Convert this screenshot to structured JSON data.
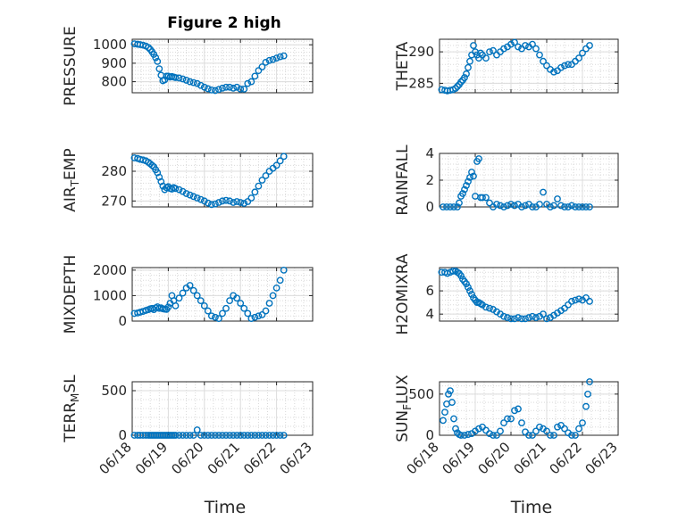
{
  "figure": {
    "title": "Figure 2 high"
  },
  "chart_data": [
    {
      "type": "scatter",
      "title": "Figure 2 high",
      "ylabel": "PRESSURE",
      "xlabel": "",
      "xlim": [
        "06/18",
        "06/23"
      ],
      "ylim": [
        740,
        1030
      ],
      "yticks": [
        "800",
        "900",
        "1000"
      ],
      "x_ticklabels": [
        "06/18",
        "06/19",
        "06/20",
        "06/21",
        "06/22",
        "06/23"
      ],
      "grid": true,
      "x": [
        0.06,
        0.15,
        0.22,
        0.3,
        0.38,
        0.45,
        0.5,
        0.55,
        0.6,
        0.65,
        0.7,
        0.75,
        0.8,
        0.85,
        0.9,
        0.95,
        1.0,
        1.05,
        1.1,
        1.15,
        1.2,
        1.3,
        1.4,
        1.5,
        1.6,
        1.7,
        1.8,
        1.9,
        2.0,
        2.1,
        2.2,
        2.3,
        2.4,
        2.5,
        2.6,
        2.7,
        2.8,
        2.9,
        3.0,
        3.1,
        3.2,
        3.3,
        3.4,
        3.5,
        3.6,
        3.7,
        3.8,
        3.9,
        4.0,
        4.1,
        4.2
      ],
      "y": [
        1005,
        1003,
        1001,
        998,
        993,
        985,
        975,
        962,
        948,
        930,
        910,
        870,
        835,
        805,
        810,
        830,
        830,
        825,
        828,
        825,
        822,
        820,
        815,
        808,
        800,
        795,
        790,
        780,
        770,
        762,
        755,
        752,
        758,
        765,
        770,
        770,
        765,
        770,
        760,
        760,
        790,
        800,
        830,
        860,
        880,
        905,
        915,
        920,
        928,
        935,
        940
      ]
    },
    {
      "type": "scatter",
      "ylabel": "THETA",
      "xlabel": "",
      "xlim": [
        "06/18",
        "06/23"
      ],
      "ylim": [
        283.5,
        292
      ],
      "yticks": [
        "285",
        "290"
      ],
      "x_ticklabels": [
        "06/18",
        "06/19",
        "06/20",
        "06/21",
        "06/22",
        "06/23"
      ],
      "grid": true,
      "x": [
        0.06,
        0.15,
        0.22,
        0.3,
        0.38,
        0.45,
        0.5,
        0.55,
        0.6,
        0.65,
        0.7,
        0.75,
        0.8,
        0.85,
        0.9,
        0.95,
        1.0,
        1.05,
        1.1,
        1.15,
        1.2,
        1.3,
        1.4,
        1.5,
        1.6,
        1.7,
        1.8,
        1.9,
        2.0,
        2.1,
        2.2,
        2.3,
        2.4,
        2.5,
        2.6,
        2.7,
        2.8,
        2.9,
        3.0,
        3.1,
        3.2,
        3.3,
        3.4,
        3.5,
        3.6,
        3.7,
        3.8,
        3.9,
        4.0,
        4.1,
        4.2
      ],
      "y": [
        284,
        283.9,
        283.8,
        283.9,
        284,
        284.2,
        284.5,
        284.8,
        285.2,
        285.5,
        285.9,
        286.5,
        287.5,
        288.5,
        289.5,
        291.0,
        290,
        289.5,
        289,
        289.8,
        289.5,
        289,
        290,
        290.2,
        289.5,
        290,
        290.5,
        290.8,
        291.2,
        291.5,
        290.8,
        290.5,
        291,
        290.8,
        291.2,
        290.5,
        289.5,
        288.5,
        287.8,
        287.2,
        286.8,
        287,
        287.5,
        287.8,
        288,
        288,
        288.5,
        289,
        289.8,
        290.5,
        291
      ]
    },
    {
      "type": "scatter",
      "ylabel": "AIR_TEMP",
      "xlabel": "",
      "xlim": [
        "06/18",
        "06/23"
      ],
      "ylim": [
        268,
        286
      ],
      "yticks": [
        "270",
        "280"
      ],
      "x_ticklabels": [
        "06/18",
        "06/19",
        "06/20",
        "06/21",
        "06/22",
        "06/23"
      ],
      "grid": true,
      "x": [
        0.06,
        0.15,
        0.22,
        0.3,
        0.38,
        0.45,
        0.5,
        0.55,
        0.6,
        0.65,
        0.7,
        0.75,
        0.8,
        0.85,
        0.9,
        0.95,
        1.0,
        1.05,
        1.1,
        1.15,
        1.2,
        1.3,
        1.4,
        1.5,
        1.6,
        1.7,
        1.8,
        1.9,
        2.0,
        2.1,
        2.2,
        2.3,
        2.4,
        2.5,
        2.6,
        2.7,
        2.8,
        2.9,
        3.0,
        3.1,
        3.2,
        3.3,
        3.4,
        3.5,
        3.6,
        3.7,
        3.8,
        3.9,
        4.0,
        4.1,
        4.2
      ],
      "y": [
        284.5,
        284.3,
        284,
        283.8,
        283.5,
        283,
        282.5,
        282,
        281.5,
        280.5,
        279.5,
        278,
        276.5,
        275,
        273.8,
        274.5,
        274.8,
        274.2,
        274,
        274.5,
        274.2,
        273.8,
        273.2,
        272.5,
        272,
        271.5,
        271,
        270.5,
        270,
        269.3,
        268.8,
        269,
        269.5,
        270,
        270.2,
        270,
        269.5,
        269.8,
        269.5,
        269.2,
        269.8,
        271,
        273,
        275,
        277,
        278.5,
        280,
        281,
        282,
        283.5,
        285
      ]
    },
    {
      "type": "scatter",
      "ylabel": "RAINFALL",
      "xlabel": "",
      "xlim": [
        "06/18",
        "06/23"
      ],
      "ylim": [
        0,
        4
      ],
      "yticks": [
        "0",
        "2",
        "4"
      ],
      "x_ticklabels": [
        "06/18",
        "06/19",
        "06/20",
        "06/21",
        "06/22",
        "06/23"
      ],
      "grid": true,
      "x": [
        0.1,
        0.2,
        0.3,
        0.4,
        0.5,
        0.55,
        0.6,
        0.65,
        0.7,
        0.75,
        0.8,
        0.85,
        0.9,
        0.95,
        1.0,
        1.05,
        1.1,
        1.15,
        1.2,
        1.3,
        1.4,
        1.5,
        1.6,
        1.7,
        1.8,
        1.9,
        2.0,
        2.1,
        2.2,
        2.3,
        2.4,
        2.5,
        2.6,
        2.7,
        2.8,
        2.9,
        3.0,
        3.1,
        3.2,
        3.3,
        3.4,
        3.5,
        3.6,
        3.7,
        3.8,
        3.9,
        4.0,
        4.1,
        4.2
      ],
      "y": [
        0,
        0,
        0,
        0,
        0,
        0.3,
        0.8,
        1.0,
        1.3,
        1.6,
        1.9,
        2.2,
        2.6,
        2.3,
        0.8,
        3.4,
        3.6,
        0.7,
        0.7,
        0.7,
        0.3,
        0,
        0.2,
        0.1,
        0,
        0.1,
        0.2,
        0.1,
        0.2,
        0,
        0.1,
        0.2,
        0,
        0,
        0.2,
        1.1,
        0.2,
        0,
        0.1,
        0.6,
        0.1,
        0,
        0,
        0.1,
        0,
        0,
        0,
        0,
        0
      ]
    },
    {
      "type": "scatter",
      "ylabel": "MIXDEPTH",
      "xlabel": "",
      "xlim": [
        "06/18",
        "06/23"
      ],
      "ylim": [
        0,
        2100
      ],
      "yticks": [
        "0",
        "1000",
        "2000"
      ],
      "x_ticklabels": [
        "06/18",
        "06/19",
        "06/20",
        "06/21",
        "06/22",
        "06/23"
      ],
      "grid": true,
      "x": [
        0.06,
        0.15,
        0.22,
        0.3,
        0.38,
        0.45,
        0.5,
        0.55,
        0.6,
        0.65,
        0.7,
        0.75,
        0.8,
        0.85,
        0.9,
        0.95,
        1.0,
        1.05,
        1.1,
        1.15,
        1.2,
        1.3,
        1.4,
        1.5,
        1.6,
        1.7,
        1.8,
        1.9,
        2.0,
        2.1,
        2.2,
        2.3,
        2.4,
        2.5,
        2.6,
        2.7,
        2.8,
        2.9,
        3.0,
        3.1,
        3.2,
        3.3,
        3.4,
        3.5,
        3.6,
        3.7,
        3.8,
        3.9,
        4.0,
        4.1,
        4.2
      ],
      "y": [
        300,
        320,
        350,
        380,
        420,
        450,
        480,
        500,
        450,
        520,
        560,
        500,
        520,
        480,
        470,
        460,
        550,
        700,
        1000,
        800,
        600,
        900,
        1100,
        1300,
        1400,
        1200,
        1000,
        800,
        600,
        400,
        200,
        150,
        100,
        300,
        500,
        800,
        1000,
        900,
        700,
        500,
        300,
        100,
        150,
        200,
        250,
        400,
        700,
        1000,
        1300,
        1600,
        2000
      ]
    },
    {
      "type": "scatter",
      "ylabel": "H2OMIXRA",
      "xlabel": "",
      "xlim": [
        "06/18",
        "06/23"
      ],
      "ylim": [
        3.4,
        8
      ],
      "yticks": [
        "4",
        "6"
      ],
      "x_ticklabels": [
        "06/18",
        "06/19",
        "06/20",
        "06/21",
        "06/22",
        "06/23"
      ],
      "grid": true,
      "x": [
        0.06,
        0.15,
        0.22,
        0.3,
        0.38,
        0.45,
        0.5,
        0.55,
        0.6,
        0.65,
        0.7,
        0.75,
        0.8,
        0.85,
        0.9,
        0.95,
        1.0,
        1.05,
        1.1,
        1.15,
        1.2,
        1.3,
        1.4,
        1.5,
        1.6,
        1.7,
        1.8,
        1.9,
        2.0,
        2.1,
        2.2,
        2.3,
        2.4,
        2.5,
        2.6,
        2.7,
        2.8,
        2.9,
        3.0,
        3.1,
        3.2,
        3.3,
        3.4,
        3.5,
        3.6,
        3.7,
        3.8,
        3.9,
        4.0,
        4.1,
        4.2
      ],
      "y": [
        7.6,
        7.6,
        7.5,
        7.6,
        7.7,
        7.7,
        7.6,
        7.5,
        7.3,
        7.0,
        6.8,
        6.6,
        6.3,
        6.0,
        5.7,
        5.4,
        5.2,
        5.0,
        5.0,
        4.9,
        4.8,
        4.6,
        4.5,
        4.4,
        4.2,
        4.0,
        3.8,
        3.7,
        3.6,
        3.6,
        3.7,
        3.6,
        3.6,
        3.7,
        3.8,
        3.7,
        3.8,
        4.0,
        3.6,
        3.7,
        3.9,
        4.1,
        4.3,
        4.5,
        4.8,
        5.1,
        5.2,
        5.3,
        5.2,
        5.4,
        5.1
      ]
    },
    {
      "type": "scatter",
      "ylabel": "TERR_MSL",
      "xlabel": "Time",
      "xlim": [
        "06/18",
        "06/23"
      ],
      "ylim": [
        0,
        600
      ],
      "yticks": [
        "0",
        "500"
      ],
      "x_ticklabels": [
        "06/18",
        "06/19",
        "06/20",
        "06/21",
        "06/22",
        "06/23"
      ],
      "grid": true,
      "x": [
        0.06,
        0.15,
        0.22,
        0.3,
        0.38,
        0.45,
        0.5,
        0.55,
        0.6,
        0.65,
        0.7,
        0.75,
        0.8,
        0.85,
        0.9,
        0.95,
        1.0,
        1.05,
        1.1,
        1.15,
        1.2,
        1.3,
        1.4,
        1.5,
        1.6,
        1.7,
        1.8,
        1.9,
        2.0,
        2.1,
        2.2,
        2.3,
        2.4,
        2.5,
        2.6,
        2.7,
        2.8,
        2.9,
        3.0,
        3.1,
        3.2,
        3.3,
        3.4,
        3.5,
        3.6,
        3.7,
        3.8,
        3.9,
        4.0,
        4.1,
        4.2
      ],
      "y": [
        0,
        0,
        0,
        0,
        0,
        0,
        0,
        0,
        0,
        0,
        0,
        0,
        0,
        0,
        0,
        0,
        0,
        0,
        0,
        0,
        0,
        0,
        0,
        0,
        0,
        0,
        60,
        0,
        0,
        0,
        0,
        0,
        0,
        0,
        0,
        0,
        0,
        0,
        0,
        0,
        0,
        0,
        0,
        0,
        0,
        0,
        0,
        0,
        0,
        0,
        0
      ]
    },
    {
      "type": "scatter",
      "ylabel": "SUN_FLUX",
      "xlabel": "Time",
      "xlim": [
        "06/18",
        "06/23"
      ],
      "ylim": [
        0,
        650
      ],
      "yticks": [
        "0",
        "500"
      ],
      "x_ticklabels": [
        "06/18",
        "06/19",
        "06/20",
        "06/21",
        "06/22",
        "06/23"
      ],
      "grid": true,
      "x": [
        0.1,
        0.15,
        0.2,
        0.25,
        0.3,
        0.35,
        0.4,
        0.45,
        0.5,
        0.55,
        0.6,
        0.7,
        0.8,
        0.9,
        1.0,
        1.1,
        1.2,
        1.3,
        1.4,
        1.5,
        1.6,
        1.7,
        1.8,
        1.9,
        2.0,
        2.1,
        2.2,
        2.3,
        2.4,
        2.5,
        2.6,
        2.7,
        2.8,
        2.9,
        3.0,
        3.1,
        3.2,
        3.3,
        3.4,
        3.5,
        3.6,
        3.7,
        3.8,
        3.9,
        4.0,
        4.1,
        4.15,
        4.2
      ],
      "y": [
        180,
        280,
        380,
        500,
        540,
        400,
        200,
        80,
        30,
        10,
        0,
        0,
        10,
        20,
        50,
        80,
        100,
        60,
        20,
        0,
        0,
        50,
        150,
        200,
        200,
        300,
        320,
        150,
        40,
        0,
        0,
        50,
        100,
        80,
        50,
        0,
        0,
        100,
        120,
        80,
        30,
        0,
        0,
        80,
        150,
        350,
        500,
        650
      ]
    }
  ]
}
